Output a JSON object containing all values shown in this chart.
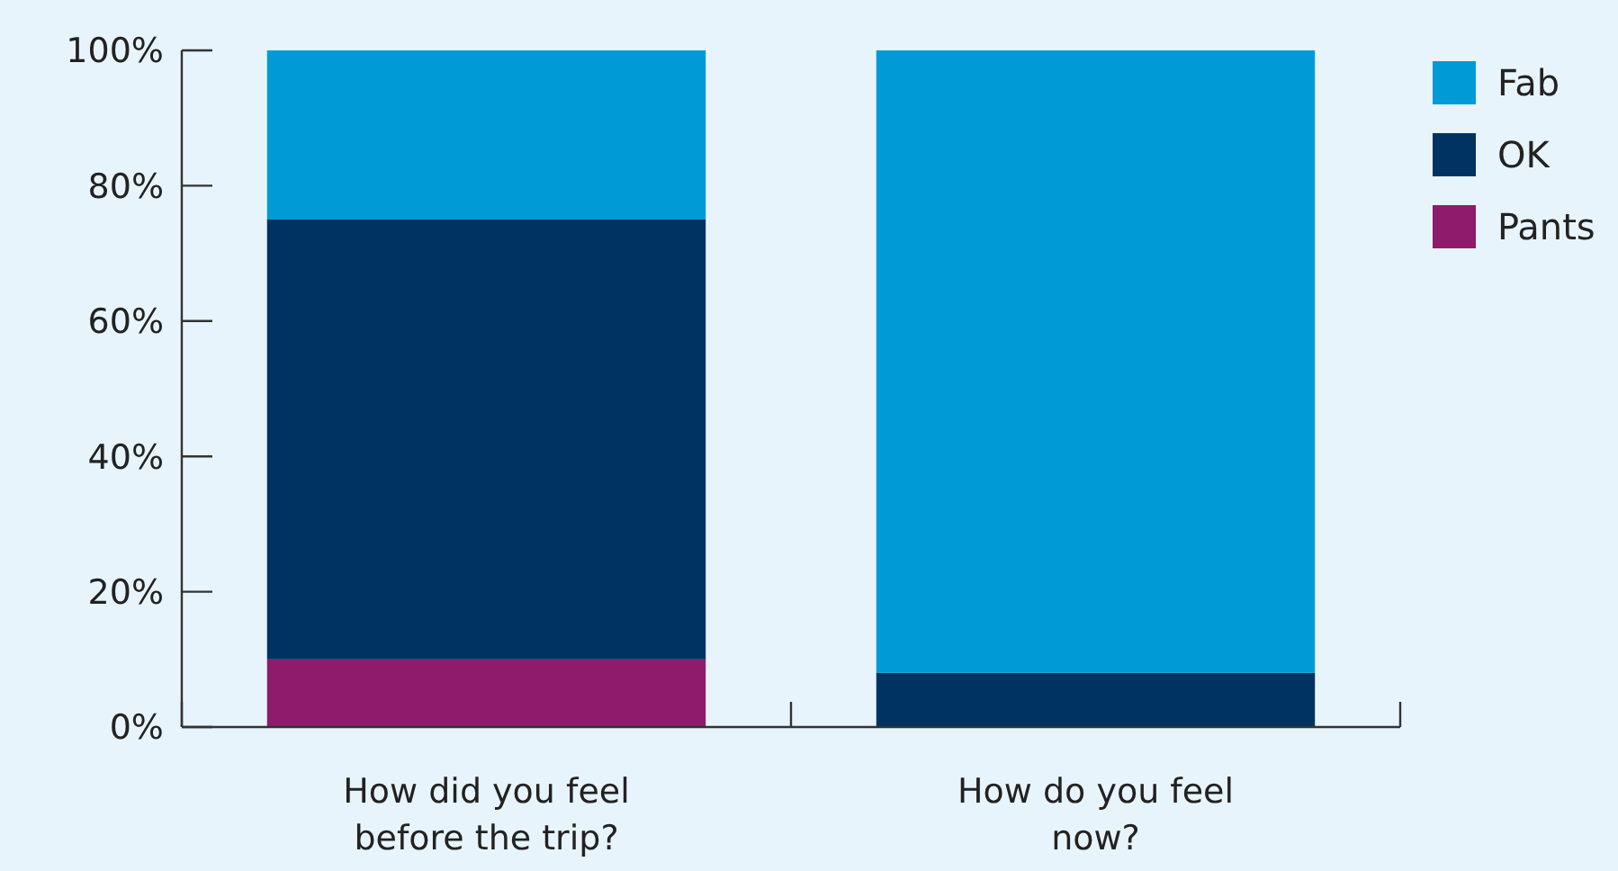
{
  "chart_data": {
    "type": "bar",
    "stacked": true,
    "categories": [
      "How did you feel before the trip?",
      "How do you feel now?"
    ],
    "series": [
      {
        "name": "Pants",
        "color": "#8e1b6b",
        "values": [
          10,
          0
        ]
      },
      {
        "name": "OK",
        "color": "#003361",
        "values": [
          65,
          8
        ]
      },
      {
        "name": "Fab",
        "color": "#009bd6",
        "values": [
          25,
          92
        ]
      }
    ],
    "ylim": [
      0,
      100
    ],
    "yticks": [
      {
        "value": 0,
        "label": "0%"
      },
      {
        "value": 20,
        "label": "20%"
      },
      {
        "value": 40,
        "label": "40%"
      },
      {
        "value": 60,
        "label": "60%"
      },
      {
        "value": 80,
        "label": "80%"
      },
      {
        "value": 100,
        "label": "100%"
      }
    ],
    "grid": false,
    "legend": "top right"
  }
}
